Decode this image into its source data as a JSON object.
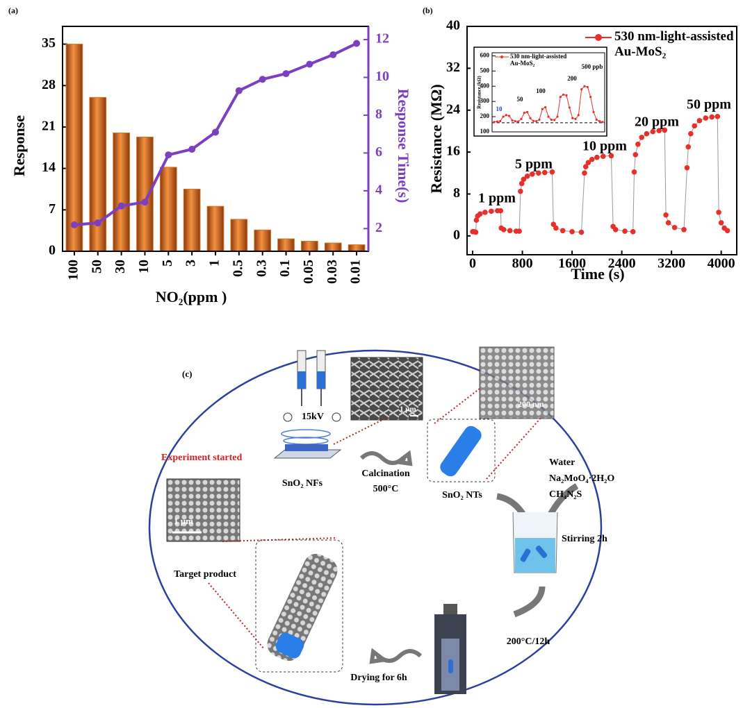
{
  "chart_data": [
    {
      "type": "bar",
      "panel": "(a)",
      "xlabel": "NO₂(ppm )",
      "categories": [
        "100",
        "50",
        "30",
        "10",
        "5",
        "3",
        "1",
        "0.5",
        "0.3",
        "0.1",
        "0.05",
        "0.03",
        "0.01"
      ],
      "series": [
        {
          "name": "Response",
          "color": "#d9731f",
          "values": [
            35,
            26,
            20,
            19.3,
            14.2,
            10.5,
            7.6,
            5.4,
            3.6,
            2.1,
            1.7,
            1.4,
            1.1
          ]
        },
        {
          "name": "Response Time(s)",
          "color": "#7b3fbf",
          "type": "line",
          "axis": "y2",
          "values": [
            2.2,
            2.3,
            3.2,
            3.4,
            5.9,
            6.2,
            7.1,
            9.3,
            9.9,
            10.2,
            10.7,
            11.2,
            11.8
          ]
        }
      ],
      "ylim": [
        0,
        38
      ],
      "yticks": [
        0,
        7,
        14,
        21,
        28,
        35
      ],
      "y2lim": [
        0.8,
        12.7
      ],
      "y2ticks": [
        2,
        4,
        6,
        8,
        10,
        12
      ]
    },
    {
      "type": "line",
      "panel": "(b)",
      "xlabel": "Time (s)",
      "ylabel": "Resistance (MΩ)",
      "x": [
        0,
        25,
        50,
        60,
        80,
        120,
        200,
        300,
        400,
        450,
        460,
        500,
        600,
        700,
        750,
        770,
        790,
        820,
        880,
        960,
        1060,
        1160,
        1280,
        1300,
        1340,
        1450,
        1600,
        1750,
        1800,
        1820,
        1860,
        1920,
        2000,
        2100,
        2230,
        2260,
        2300,
        2450,
        2580,
        2600,
        2620,
        2660,
        2720,
        2800,
        2900,
        3000,
        3090,
        3110,
        3150,
        3250,
        3400,
        3450,
        3470,
        3510,
        3570,
        3650,
        3750,
        3850,
        3940,
        3960,
        4000,
        4050,
        4100
      ],
      "series": [
        {
          "name": "530 nm-light-assisted Au-MoS₂",
          "color": "#e8302a",
          "values": [
            0.8,
            0.8,
            0.7,
            3,
            3.8,
            4.2,
            4.5,
            4.7,
            4.8,
            4.8,
            1.5,
            1.2,
            1.0,
            0.9,
            0.9,
            8.5,
            10,
            10.8,
            11.4,
            11.8,
            12.0,
            12.1,
            12.2,
            2.2,
            1.5,
            1.0,
            0.8,
            0.7,
            12.0,
            13.2,
            14.0,
            14.6,
            15.0,
            15.2,
            15.3,
            1.8,
            1.2,
            0.9,
            0.8,
            12.2,
            15.5,
            17.5,
            18.8,
            19.5,
            19.9,
            20.1,
            20.2,
            4.0,
            2.5,
            1.6,
            1.2,
            13.0,
            17.0,
            19.5,
            21.0,
            22.0,
            22.5,
            22.7,
            22.8,
            4.5,
            2.5,
            1.5,
            1.0
          ]
        }
      ],
      "xlim": [
        -90,
        4250
      ],
      "xticks": [
        0,
        800,
        1600,
        2400,
        3200,
        4000
      ],
      "ylim": [
        -3.6,
        40
      ],
      "yticks": [
        0,
        8,
        16,
        24,
        32,
        40
      ],
      "annotations": [
        "1 ppm",
        "5 ppm",
        "10 ppm",
        "20 ppm",
        "50 ppm"
      ]
    },
    {
      "type": "line",
      "inset": true,
      "ylabel": "Resistance (kΩ)",
      "series": [
        {
          "name": "530 nm-light-assisted Au-MoS₂",
          "color": "#e8302a",
          "values": [
            165,
            168,
            170,
            200,
            210,
            205,
            175,
            170,
            168,
            185,
            225,
            230,
            190,
            172,
            170,
            180,
            250,
            262,
            200,
            180,
            178,
            200,
            330,
            345,
            340,
            260,
            190,
            185,
            210,
            380,
            400,
            395,
            330,
            230,
            180,
            170,
            165
          ]
        }
      ],
      "ylim": [
        100,
        620
      ],
      "yticks": [
        100,
        200,
        300,
        400,
        500,
        600
      ],
      "reference_line": 160,
      "annotations": [
        "10",
        "50",
        "100",
        "200",
        "500 ppb"
      ]
    }
  ],
  "diagram": {
    "panel": "(c)",
    "voltage": "15kV",
    "scale_nf": "1 μm",
    "scale_nt": "200 nm",
    "start": "Experiment started",
    "nf": "SnO₂ NFs",
    "calcination": "Calcination",
    "calc_temp": "500°C",
    "nt": "SnO₂ NTs",
    "water": "Water",
    "molybdate": "Na₂MoO₄·2H₂O",
    "thiourea": "CH₄N₂S",
    "stirring": "Stirring 2h",
    "scale_product": "1 μm",
    "target": "Target product",
    "hydrothermal": "200°C/12h",
    "drying": "Drying for 6h"
  }
}
